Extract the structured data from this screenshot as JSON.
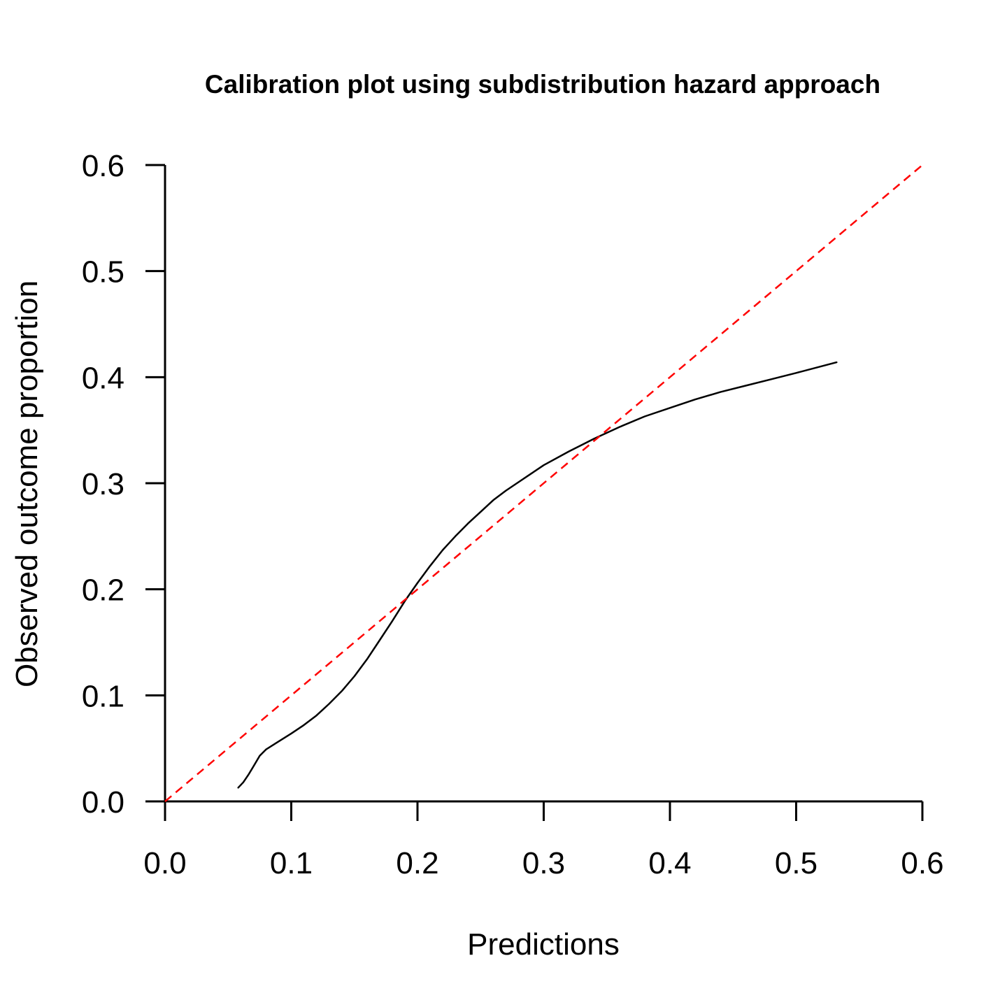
{
  "chart_data": {
    "type": "line",
    "title": "Calibration plot using subdistribution hazard approach",
    "xlabel": "Predictions",
    "ylabel": "Observed outcome proportion",
    "xlim": [
      0,
      0.6
    ],
    "ylim": [
      0,
      0.6
    ],
    "xticks": [
      "0.0",
      "0.1",
      "0.2",
      "0.3",
      "0.4",
      "0.5",
      "0.6"
    ],
    "yticks": [
      "0.0",
      "0.1",
      "0.2",
      "0.3",
      "0.4",
      "0.5",
      "0.6"
    ],
    "grid": false,
    "series": [
      {
        "style": "solid",
        "color": "#000000",
        "points": [
          [
            0.058,
            0.013
          ],
          [
            0.062,
            0.018
          ],
          [
            0.066,
            0.025
          ],
          [
            0.07,
            0.033
          ],
          [
            0.075,
            0.043
          ],
          [
            0.08,
            0.049
          ],
          [
            0.088,
            0.055
          ],
          [
            0.1,
            0.064
          ],
          [
            0.11,
            0.072
          ],
          [
            0.12,
            0.081
          ],
          [
            0.13,
            0.092
          ],
          [
            0.14,
            0.104
          ],
          [
            0.15,
            0.118
          ],
          [
            0.16,
            0.134
          ],
          [
            0.17,
            0.152
          ],
          [
            0.18,
            0.17
          ],
          [
            0.19,
            0.189
          ],
          [
            0.2,
            0.206
          ],
          [
            0.21,
            0.222
          ],
          [
            0.22,
            0.237
          ],
          [
            0.23,
            0.25
          ],
          [
            0.24,
            0.262
          ],
          [
            0.25,
            0.273
          ],
          [
            0.26,
            0.284
          ],
          [
            0.27,
            0.293
          ],
          [
            0.28,
            0.301
          ],
          [
            0.29,
            0.309
          ],
          [
            0.3,
            0.317
          ],
          [
            0.32,
            0.33
          ],
          [
            0.34,
            0.342
          ],
          [
            0.36,
            0.353
          ],
          [
            0.38,
            0.363
          ],
          [
            0.4,
            0.371
          ],
          [
            0.42,
            0.379
          ],
          [
            0.44,
            0.386
          ],
          [
            0.46,
            0.392
          ],
          [
            0.48,
            0.398
          ],
          [
            0.5,
            0.404
          ],
          [
            0.532,
            0.414
          ]
        ]
      },
      {
        "style": "dashed",
        "color": "#ff0000",
        "points": [
          [
            0,
            0
          ],
          [
            0.6,
            0.6
          ]
        ]
      }
    ]
  }
}
